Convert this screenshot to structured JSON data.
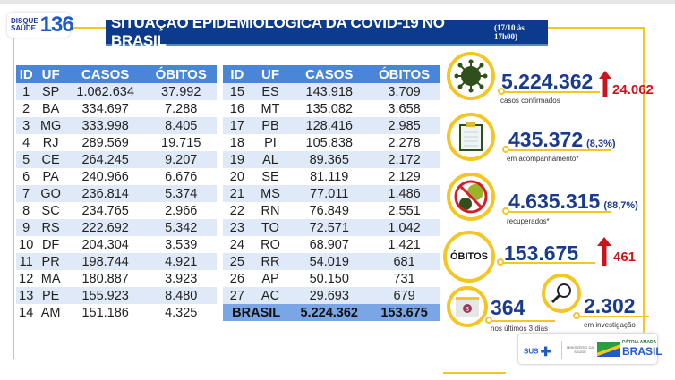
{
  "logo": {
    "line1": "DISQUE",
    "line2": "SAÚDE",
    "number": "136"
  },
  "header": {
    "title": "SITUAÇÃO EPIDEMIOLÓGICA DA COVID-19 NO BRASIL",
    "date": "(17/10 às 17h00)"
  },
  "table": {
    "columns": [
      "ID",
      "UF",
      "CASOS",
      "ÓBITOS"
    ],
    "left_rows": [
      [
        "1",
        "SP",
        "1.062.634",
        "37.992"
      ],
      [
        "2",
        "BA",
        "334.697",
        "7.288"
      ],
      [
        "3",
        "MG",
        "333.998",
        "8.405"
      ],
      [
        "4",
        "RJ",
        "289.569",
        "19.715"
      ],
      [
        "5",
        "CE",
        "264.245",
        "9.207"
      ],
      [
        "6",
        "PA",
        "240.966",
        "6.676"
      ],
      [
        "7",
        "GO",
        "236.814",
        "5.374"
      ],
      [
        "8",
        "SC",
        "234.765",
        "2.966"
      ],
      [
        "9",
        "RS",
        "222.692",
        "5.342"
      ],
      [
        "10",
        "DF",
        "204.304",
        "3.539"
      ],
      [
        "11",
        "PR",
        "198.744",
        "4.921"
      ],
      [
        "12",
        "MA",
        "180.887",
        "3.923"
      ],
      [
        "13",
        "PE",
        "155.923",
        "8.480"
      ],
      [
        "14",
        "AM",
        "151.186",
        "4.325"
      ]
    ],
    "right_rows": [
      [
        "15",
        "ES",
        "143.918",
        "3.709"
      ],
      [
        "16",
        "MT",
        "135.082",
        "3.658"
      ],
      [
        "17",
        "PB",
        "128.416",
        "2.985"
      ],
      [
        "18",
        "PI",
        "105.838",
        "2.278"
      ],
      [
        "19",
        "AL",
        "89.365",
        "2.172"
      ],
      [
        "20",
        "SE",
        "81.119",
        "2.129"
      ],
      [
        "21",
        "MS",
        "77.011",
        "1.486"
      ],
      [
        "22",
        "RN",
        "76.849",
        "2.551"
      ],
      [
        "23",
        "TO",
        "72.571",
        "1.042"
      ],
      [
        "24",
        "RO",
        "68.907",
        "1.421"
      ],
      [
        "25",
        "RR",
        "54.019",
        "681"
      ],
      [
        "26",
        "AP",
        "50.150",
        "731"
      ],
      [
        "27",
        "AC",
        "29.693",
        "679"
      ]
    ],
    "total": {
      "label": "BRASIL",
      "casos": "5.224.362",
      "obitos": "153.675"
    }
  },
  "stats": {
    "confirmed": {
      "value": "5.224.362",
      "increase": "24.062",
      "label": "casos confirmados",
      "icon": "virus-icon"
    },
    "monitoring": {
      "value": "435.372",
      "pct": "(8,3%)",
      "label": "em acompanhamento*",
      "icon": "clipboard-icon"
    },
    "recovered": {
      "value": "4.635.315",
      "pct": "(88,7%)",
      "label": "recuperados*",
      "icon": "no-virus-icon"
    },
    "deaths": {
      "badge": "ÓBITOS",
      "value": "153.675",
      "increase": "461"
    },
    "last3": {
      "value": "364",
      "label": "nos últimos 3 dias",
      "icon": "calendar-icon",
      "cal": "3"
    },
    "investigation": {
      "value": "2.302",
      "label": "em investigação",
      "icon": "magnifier-icon"
    }
  },
  "footer": {
    "sus": "SUS",
    "ministry": "MINISTÉRIO DA SAÚDE",
    "slogan": "PÁTRIA AMADA",
    "country": "BRASIL"
  },
  "colors": {
    "navy": "#0c3a8c",
    "yellow": "#f3c623",
    "red": "#c8161d",
    "header_blue": "#4a86d8"
  }
}
